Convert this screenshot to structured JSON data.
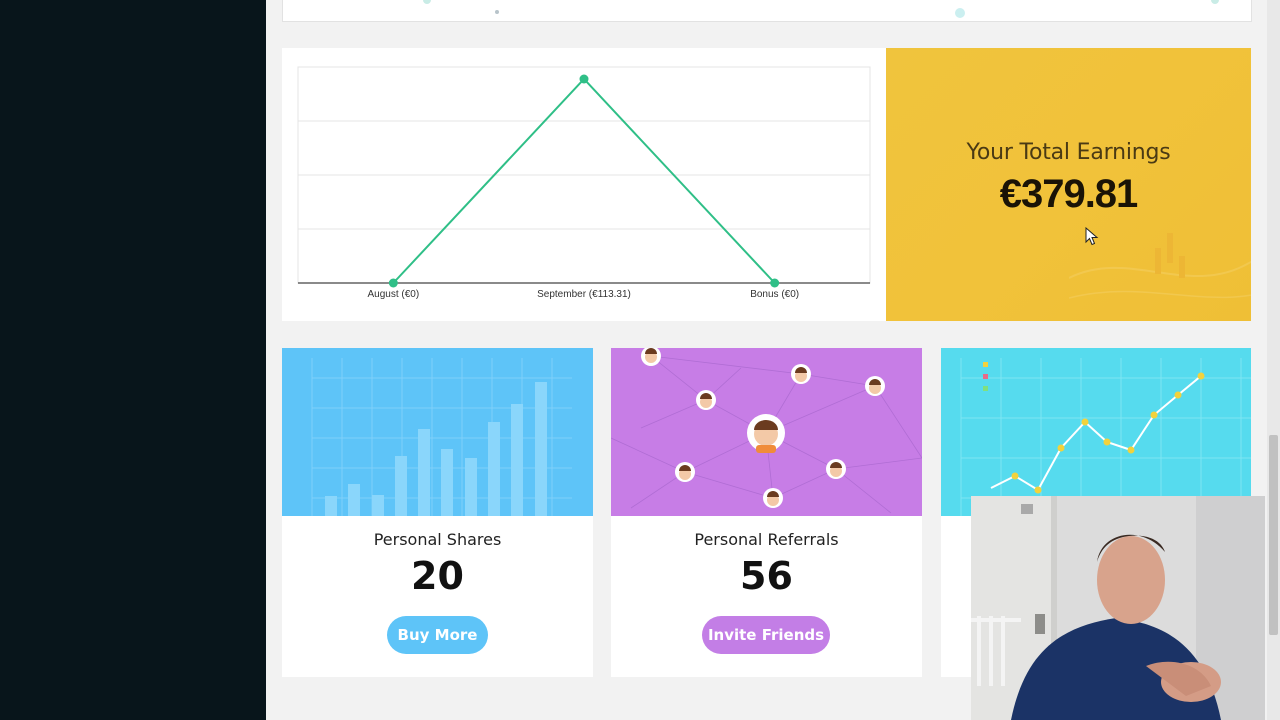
{
  "chart_data": {
    "type": "line",
    "categories": [
      "August (€0)",
      "September (€113.31)",
      "Bonus (€0)"
    ],
    "values": [
      0,
      113.31,
      0
    ],
    "ylim": [
      0,
      113.31
    ],
    "grid": true,
    "line_color": "#2fbf87"
  },
  "earnings": {
    "title": "Your Total Earnings",
    "amount": "€379.81",
    "color": "#f0c43d"
  },
  "cards": [
    {
      "label": "Personal Shares",
      "value": "20",
      "button": "Buy More",
      "color": "#5ec4f8"
    },
    {
      "label": "Personal Referrals",
      "value": "56",
      "button": "Invite Friends",
      "color": "#c77de6"
    },
    {
      "label": "",
      "value": "",
      "button": "",
      "color": "#56dbee"
    }
  ]
}
